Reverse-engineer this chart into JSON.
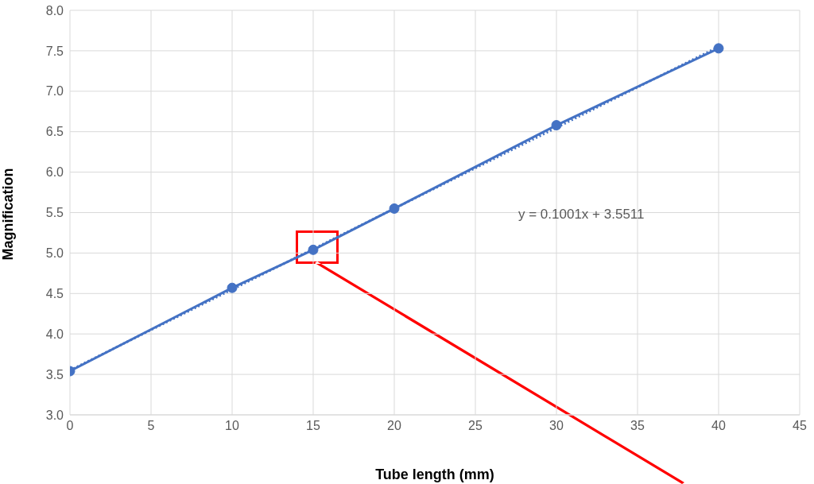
{
  "chart_data": {
    "type": "line",
    "xlabel": "Tube length (mm)",
    "ylabel": "Magnification",
    "xlim": [
      0,
      45
    ],
    "xticks": [
      0,
      5,
      10,
      15,
      20,
      25,
      30,
      35,
      40,
      45
    ],
    "ylim": [
      3.0,
      8.0
    ],
    "yticks": [
      {
        "value": 3.0,
        "label": "3.0"
      },
      {
        "value": 3.5,
        "label": "3.5"
      },
      {
        "value": 4.0,
        "label": "4.0"
      },
      {
        "value": 4.5,
        "label": "4.5"
      },
      {
        "value": 5.0,
        "label": "5.0"
      },
      {
        "value": 5.5,
        "label": "5.5"
      },
      {
        "value": 6.0,
        "label": "6.0"
      },
      {
        "value": 6.5,
        "label": "6.5"
      },
      {
        "value": 7.0,
        "label": "7.0"
      },
      {
        "value": 7.5,
        "label": "7.5"
      },
      {
        "value": 8.0,
        "label": "8.0"
      }
    ],
    "grid": true,
    "series": [
      {
        "color": "#4472c4",
        "x": [
          0,
          10,
          15,
          20,
          30,
          40
        ],
        "values": [
          3.54,
          4.57,
          5.04,
          5.55,
          6.58,
          7.53
        ],
        "marker": "circle",
        "line_style": "solid"
      },
      {
        "type": "line",
        "color": "#4472c4",
        "x": [
          0,
          40
        ],
        "values": [
          3.55,
          7.55
        ],
        "marker": "none",
        "line_style": "dotted"
      }
    ],
    "annotations": [
      "y = 0.1001x + 3.5511"
    ]
  }
}
